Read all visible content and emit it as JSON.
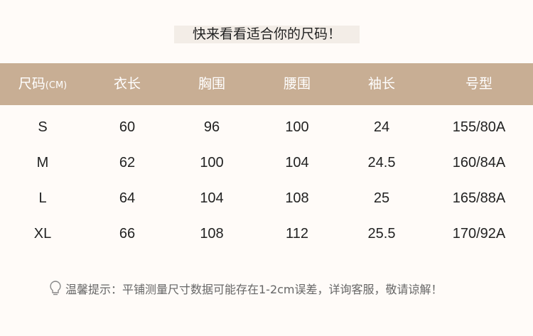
{
  "title": "快来看看适合你的尺码！",
  "header": {
    "size_label": "尺码",
    "size_unit": "(CM)",
    "columns": [
      "衣长",
      "胸围",
      "腰围",
      "袖长",
      "号型"
    ]
  },
  "rows": [
    [
      "S",
      "60",
      "96",
      "100",
      "24",
      "155/80A"
    ],
    [
      "M",
      "62",
      "100",
      "104",
      "24.5",
      "160/84A"
    ],
    [
      "L",
      "64",
      "104",
      "108",
      "25",
      "165/88A"
    ],
    [
      "XL",
      "66",
      "108",
      "112",
      "25.5",
      "170/92A"
    ]
  ],
  "note": {
    "icon": "lightbulb-icon",
    "text": "温馨提示：平铺测量尺寸数据可能存在1-2cm误差，详询客服，敬请谅解！"
  },
  "colors": {
    "header_bg": "#c8ae94",
    "page_bg": "#fffbf8",
    "title_bg": "#f3ede7"
  }
}
